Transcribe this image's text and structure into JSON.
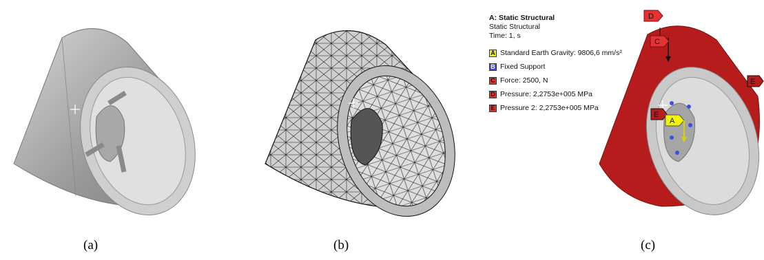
{
  "captions": {
    "a": "(a)",
    "b": "(b)",
    "c": "(c)"
  },
  "legend": {
    "title": "A: Static Structural",
    "subtitle": "Static Structural",
    "time": "Time: 1, s",
    "items": [
      {
        "letter": "A",
        "text": "Standard Earth Gravity: 9806,6 mm/s²",
        "color": "#f5f500"
      },
      {
        "letter": "B",
        "text": "Fixed Support",
        "color": "#3b4fe0"
      },
      {
        "letter": "C",
        "text": "Force: 2500, N",
        "color": "#e63232"
      },
      {
        "letter": "D",
        "text": "Pressure: 2,2753e+005 MPa",
        "color": "#e63232"
      },
      {
        "letter": "E",
        "text": "Pressure 2: 2,2753e+005 MPa",
        "color": "#e63232"
      }
    ]
  },
  "tags": {
    "D": "D",
    "C": "C",
    "E1": "E",
    "E2": "E",
    "A": "A"
  },
  "colors": {
    "rim_gray": "#b9b9b9",
    "rim_red": "#b71c1c",
    "mesh_line": "#222222"
  }
}
